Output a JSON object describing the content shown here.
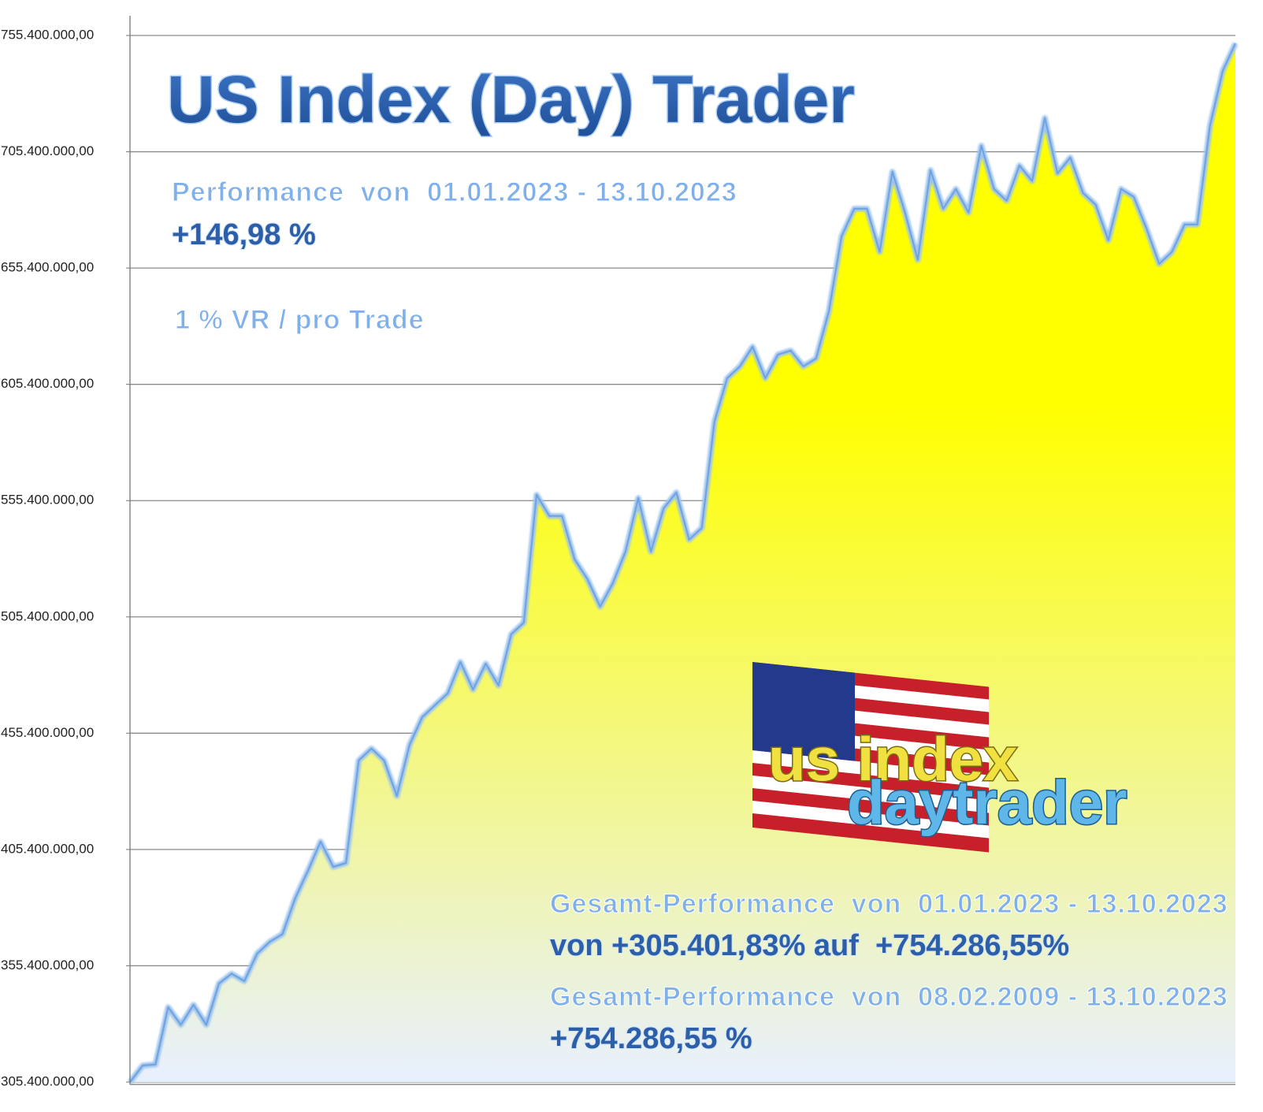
{
  "chart_data": {
    "type": "area",
    "title": "US Index (Day) Trader",
    "annotations": {
      "performance_label": "Performance  von  01.01.2023 - 13.10.2023",
      "performance_value": "+146,98 %",
      "risk": "1 % VR / pro Trade",
      "total_label_1": "Gesamt-Performance  von  01.01.2023 - 13.10.2023",
      "total_value_1": "von +305.401,83% auf  +754.286,55%",
      "total_label_2": "Gesamt-Performance  von  08.02.2009 - 13.10.2023",
      "total_value_2": "+754.286,55 %",
      "logo_top": "us index",
      "logo_bottom": "daytrader"
    },
    "fill_top": "#ffff00",
    "fill_bottom": "#e8f0ff",
    "line_color": "#9cc3ee",
    "grid": true,
    "ylim": [
      305400000,
      755400000
    ],
    "yticks": [
      {
        "value": 305400000,
        "label": "305.400.000,00"
      },
      {
        "value": 355400000,
        "label": "355.400.000,00"
      },
      {
        "value": 405400000,
        "label": "405.400.000,00"
      },
      {
        "value": 455400000,
        "label": "455.400.000,00"
      },
      {
        "value": 505400000,
        "label": "505.400.000,00"
      },
      {
        "value": 555400000,
        "label": "555.400.000,00"
      },
      {
        "value": 605400000,
        "label": "605.400.000,00"
      },
      {
        "value": 655400000,
        "label": "655.400.000,00"
      },
      {
        "value": 705400000,
        "label": "705.400.000,00"
      },
      {
        "value": 755400000,
        "label": "755.400.000,00"
      }
    ],
    "values": [
      305400000,
      312500000,
      313000000,
      337600000,
      330000000,
      338600000,
      330000000,
      347800000,
      352000000,
      348800000,
      360600000,
      365700000,
      369000000,
      384400000,
      396200000,
      408800000,
      397900000,
      399600000,
      443700000,
      448800000,
      443700000,
      428400000,
      450400000,
      462300000,
      467400000,
      472500000,
      486000000,
      474200000,
      485300000,
      475900000,
      497900000,
      503000000,
      557900000,
      548800000,
      548800000,
      530100000,
      521600000,
      509800000,
      519900000,
      533500000,
      556500000,
      533500000,
      552100000,
      558900000,
      538600000,
      543600000,
      589400000,
      608000000,
      613100000,
      621600000,
      608000000,
      618200000,
      619900000,
      613100000,
      616500000,
      636800000,
      669000000,
      680900000,
      680900000,
      662300000,
      696800000,
      679200000,
      658900000,
      697500000,
      680900000,
      689400000,
      679200000,
      708000000,
      689400000,
      684300000,
      699500000,
      692800000,
      719900000,
      696100000,
      702900000,
      687700000,
      682600000,
      667300000,
      689400000,
      686000000,
      672400000,
      657200000,
      662300000,
      674100000,
      674100000,
      716500000,
      740200000,
      752000000
    ]
  }
}
